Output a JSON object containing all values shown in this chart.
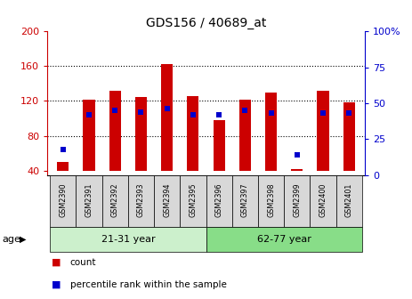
{
  "title": "GDS156 / 40689_at",
  "samples": [
    "GSM2390",
    "GSM2391",
    "GSM2392",
    "GSM2393",
    "GSM2394",
    "GSM2395",
    "GSM2396",
    "GSM2397",
    "GSM2398",
    "GSM2399",
    "GSM2400",
    "GSM2401"
  ],
  "bar_bottom": 40,
  "count_values": [
    50,
    122,
    132,
    125,
    162,
    126,
    98,
    122,
    130,
    42,
    132,
    118
  ],
  "percentile_values": [
    18,
    42,
    45,
    44,
    46,
    42,
    42,
    45,
    43,
    14,
    43,
    43
  ],
  "groups": [
    {
      "label": "21-31 year",
      "start": 0,
      "end": 6,
      "color": "#ccf0cc"
    },
    {
      "label": "62-77 year",
      "start": 6,
      "end": 12,
      "color": "#88dd88"
    }
  ],
  "ylim_left": [
    35,
    200
  ],
  "ylim_right": [
    0,
    100
  ],
  "yticks_left": [
    40,
    80,
    120,
    160,
    200
  ],
  "yticks_right": [
    0,
    25,
    50,
    75,
    100
  ],
  "bar_color": "#cc0000",
  "percentile_color": "#0000cc",
  "background_color": "#ffffff",
  "ylabel_left_color": "#cc0000",
  "ylabel_right_color": "#0000cc",
  "legend_count": "count",
  "legend_percentile": "percentile rank within the sample",
  "age_label": "age",
  "grid_yticks": [
    80,
    120,
    160
  ],
  "bar_width": 0.45
}
